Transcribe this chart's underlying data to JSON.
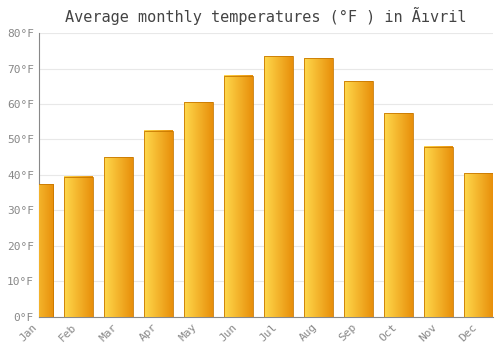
{
  "title": "Average monthly temperatures (°F ) in Ãıvril",
  "months": [
    "Jan",
    "Feb",
    "Mar",
    "Apr",
    "May",
    "Jun",
    "Jul",
    "Aug",
    "Sep",
    "Oct",
    "Nov",
    "Dec"
  ],
  "values": [
    37.5,
    39.5,
    45.0,
    52.5,
    60.5,
    68.0,
    73.5,
    73.0,
    66.5,
    57.5,
    48.0,
    40.5
  ],
  "bar_color_left": "#FFD966",
  "bar_color_right": "#E8900A",
  "bar_edge_color": "#C87800",
  "background_color": "#FFFFFF",
  "grid_color": "#E8E8E8",
  "ylim": [
    0,
    80
  ],
  "yticks": [
    0,
    10,
    20,
    30,
    40,
    50,
    60,
    70,
    80
  ],
  "title_fontsize": 11,
  "tick_fontsize": 8,
  "tick_color": "#888888",
  "font_family": "monospace",
  "bar_width": 0.72
}
